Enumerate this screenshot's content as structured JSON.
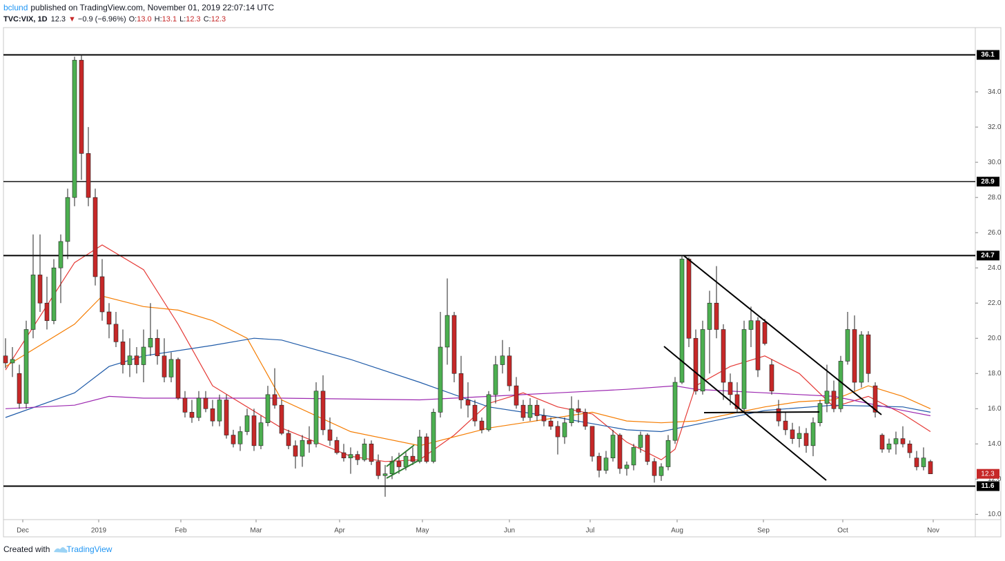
{
  "chart_data": {
    "type": "candlestick",
    "author": "bclund",
    "published": "published on TradingView.com, November 01, 2019 22:07:14 UTC",
    "symbol": "TVC:VIX, 1D",
    "last": "12.3",
    "arrow": "▼",
    "change": "−0.9 (−6.96%)",
    "ohlc_legend": [
      {
        "label": "O:",
        "value": "13.0"
      },
      {
        "label": "H:",
        "value": "13.1"
      },
      {
        "label": "L:",
        "value": "12.3"
      },
      {
        "label": "C:",
        "value": "12.3"
      }
    ],
    "footer": {
      "text": "Created with",
      "brand": "TradingView"
    },
    "up_color": "#4caf50",
    "down_color": "#c62828",
    "grid": false,
    "xlim": [
      -0.3,
      140.5
    ],
    "ylim": [
      9.7,
      37.65
    ],
    "xticks": [
      {
        "value": 2.5,
        "label": "Dec"
      },
      {
        "value": 13.5,
        "label": "2019"
      },
      {
        "value": 25.4,
        "label": "Feb"
      },
      {
        "value": 36.3,
        "label": "Mar"
      },
      {
        "value": 48.4,
        "label": "Apr"
      },
      {
        "value": 60.4,
        "label": "May"
      },
      {
        "value": 73,
        "label": "Jun"
      },
      {
        "value": 84.7,
        "label": "Jul"
      },
      {
        "value": 97.3,
        "label": "Aug"
      },
      {
        "value": 109.8,
        "label": "Sep"
      },
      {
        "value": 121.3,
        "label": "Oct"
      },
      {
        "value": 134.4,
        "label": "Nov"
      }
    ],
    "yticks": [
      {
        "value": 10,
        "label": "10.0"
      },
      {
        "value": 12,
        "label": "12.0"
      },
      {
        "value": 14,
        "label": "14.0"
      },
      {
        "value": 16,
        "label": "16.0"
      },
      {
        "value": 18,
        "label": "18.0"
      },
      {
        "value": 20,
        "label": "20.0"
      },
      {
        "value": 22,
        "label": "22.0"
      },
      {
        "value": 24,
        "label": "24.0"
      },
      {
        "value": 26,
        "label": "26.0"
      },
      {
        "value": 28,
        "label": "28.0"
      },
      {
        "value": 30,
        "label": "30.0"
      },
      {
        "value": 32,
        "label": "32.0"
      },
      {
        "value": 34,
        "label": "34.0"
      }
    ],
    "levels": [
      36.1,
      28.9,
      24.7,
      11.6
    ],
    "open": [
      19.0,
      18.6,
      18.0,
      16.3,
      20.5,
      23.6,
      22.0,
      21.0,
      24.0,
      25.5,
      28.0,
      35.8,
      30.5,
      28.0,
      23.5,
      21.5,
      20.8,
      19.8,
      18.5,
      19.0,
      18.5,
      19.5,
      20.0,
      19.0,
      17.8,
      18.8,
      16.6,
      15.8,
      15.5,
      16.6,
      16.0,
      15.3,
      16.5,
      14.5,
      14.0,
      14.7,
      15.6,
      13.9,
      15.2,
      16.8,
      16.2,
      14.6,
      13.9,
      13.3,
      14.2,
      14.0,
      17.0,
      14.8,
      14.2,
      13.5,
      13.2,
      13.4,
      13.1,
      14.0,
      13.0,
      12.2,
      12.3,
      13.0,
      12.7,
      13.3,
      13.0,
      14.4,
      13.0,
      15.8,
      19.5,
      21.3,
      18.0,
      16.5,
      16.2,
      15.3,
      14.8,
      16.8,
      18.5,
      19.0,
      17.3,
      16.2,
      15.5,
      16.2,
      15.6,
      15.3,
      15.0,
      14.4,
      15.2,
      16.0,
      15.8,
      15.0,
      13.3,
      12.5,
      13.2,
      14.5,
      12.6,
      12.8,
      13.8,
      14.5,
      13.0,
      12.2,
      12.7,
      14.2,
      17.5,
      24.5,
      20.0,
      17.0,
      20.5,
      22.0,
      20.5,
      17.5,
      16.8,
      16.0,
      20.5,
      21.0,
      20.9,
      18.5,
      16.0,
      15.3,
      14.8,
      14.3,
      14.6,
      13.9,
      15.2,
      16.3,
      17.0,
      16.0,
      18.7,
      20.5,
      17.5,
      20.2,
      17.3,
      14.5,
      13.7,
      14.0,
      14.3,
      14.0,
      13.2,
      12.7,
      13.0
    ],
    "high": [
      20.0,
      19.5,
      18.5,
      21.0,
      25.9,
      25.9,
      23.5,
      24.5,
      25.9,
      28.5,
      36.0,
      36.1,
      32.0,
      28.5,
      24.5,
      22.0,
      21.5,
      20.5,
      20.0,
      19.5,
      20.5,
      22.0,
      20.5,
      20.0,
      19.2,
      18.9,
      17.0,
      16.5,
      17.0,
      17.0,
      16.5,
      16.8,
      16.8,
      14.8,
      15.0,
      16.0,
      16.0,
      15.6,
      17.3,
      18.3,
      16.5,
      14.8,
      14.2,
      14.5,
      15.0,
      17.5,
      17.9,
      15.5,
      14.4,
      14.0,
      13.8,
      13.6,
      14.3,
      14.2,
      13.4,
      12.8,
      13.3,
      13.5,
      13.6,
      13.8,
      14.8,
      14.6,
      16.0,
      21.5,
      23.4,
      21.5,
      19.0,
      17.5,
      16.5,
      15.5,
      17.0,
      19.0,
      19.9,
      19.5,
      17.8,
      16.5,
      16.6,
      16.5,
      16.0,
      15.5,
      15.3,
      15.5,
      16.7,
      16.5,
      16.0,
      15.0,
      13.5,
      13.6,
      14.8,
      14.6,
      13.0,
      14.0,
      14.7,
      14.6,
      13.2,
      12.9,
      14.5,
      17.8,
      24.7,
      24.6,
      20.5,
      21.0,
      22.7,
      24.1,
      20.8,
      18.0,
      17.5,
      21.0,
      21.8,
      21.2,
      21.1,
      18.8,
      16.5,
      15.8,
      15.2,
      15.0,
      14.9,
      15.5,
      16.5,
      18.5,
      17.6,
      19.0,
      21.5,
      21.3,
      20.4,
      20.4,
      17.5,
      14.6,
      14.3,
      14.7,
      15.0,
      14.2,
      13.6,
      13.8,
      13.1
    ],
    "low": [
      18.3,
      17.8,
      16.0,
      16.0,
      20.0,
      21.5,
      20.5,
      20.8,
      22.0,
      24.5,
      27.5,
      29.0,
      27.5,
      23.0,
      21.0,
      20.0,
      19.5,
      18.0,
      17.8,
      18.0,
      17.5,
      19.0,
      18.5,
      17.5,
      17.5,
      16.5,
      15.5,
      15.2,
      15.3,
      15.8,
      15.0,
      15.0,
      14.3,
      13.8,
      13.6,
      14.5,
      13.6,
      13.7,
      15.0,
      16.0,
      14.5,
      13.7,
      12.6,
      12.7,
      13.5,
      13.8,
      14.5,
      13.9,
      13.4,
      13.0,
      12.3,
      12.8,
      13.0,
      12.8,
      12.0,
      11.0,
      12.0,
      12.3,
      12.5,
      12.8,
      12.9,
      12.9,
      12.9,
      15.5,
      18.5,
      17.5,
      16.0,
      15.5,
      15.0,
      14.6,
      14.7,
      16.3,
      18.0,
      17.0,
      16.0,
      15.3,
      15.3,
      15.3,
      15.0,
      14.8,
      13.4,
      14.0,
      15.0,
      15.2,
      14.8,
      13.0,
      12.1,
      12.3,
      13.0,
      12.3,
      12.2,
      12.5,
      13.5,
      12.8,
      11.8,
      11.9,
      12.5,
      14.0,
      17.4,
      19.5,
      16.8,
      16.8,
      18.0,
      20.0,
      16.5,
      16.2,
      15.8,
      15.8,
      19.5,
      17.8,
      19.6,
      16.8,
      15.0,
      14.5,
      14.0,
      13.8,
      13.5,
      13.3,
      15.0,
      15.8,
      15.8,
      15.8,
      18.5,
      17.0,
      17.2,
      17.5,
      15.5,
      13.5,
      13.5,
      13.4,
      13.8,
      13.2,
      12.5,
      12.5,
      12.3
    ],
    "close": [
      18.6,
      18.8,
      16.3,
      20.5,
      23.6,
      22.0,
      21.0,
      24.0,
      25.5,
      28.0,
      35.8,
      30.5,
      28.0,
      23.5,
      21.5,
      20.8,
      19.8,
      18.5,
      19.0,
      18.5,
      19.5,
      20.0,
      19.0,
      17.8,
      18.8,
      16.6,
      15.8,
      15.5,
      16.6,
      16.0,
      15.3,
      16.5,
      14.5,
      14.0,
      14.7,
      15.6,
      13.9,
      15.2,
      16.8,
      16.2,
      14.6,
      13.9,
      13.3,
      14.2,
      14.0,
      17.0,
      14.8,
      14.2,
      13.5,
      13.2,
      13.4,
      13.1,
      14.0,
      13.0,
      12.2,
      12.3,
      13.0,
      12.7,
      13.3,
      13.0,
      14.4,
      13.0,
      15.8,
      19.5,
      21.3,
      18.0,
      16.5,
      16.2,
      15.3,
      14.8,
      16.8,
      18.5,
      19.0,
      17.3,
      16.2,
      15.5,
      16.2,
      15.6,
      15.3,
      15.0,
      14.4,
      15.2,
      16.0,
      15.8,
      15.0,
      13.3,
      12.5,
      13.2,
      14.5,
      12.6,
      12.8,
      13.8,
      14.5,
      13.0,
      12.2,
      12.7,
      14.2,
      17.5,
      24.5,
      20.0,
      17.0,
      20.5,
      22.0,
      20.5,
      17.5,
      16.8,
      16.0,
      20.5,
      21.0,
      18.2,
      19.7,
      17.0,
      15.3,
      14.8,
      14.3,
      14.6,
      13.9,
      15.2,
      16.3,
      17.0,
      16.0,
      18.7,
      20.5,
      17.5,
      20.2,
      18.0,
      15.8,
      13.7,
      14.0,
      14.3,
      14.0,
      13.5,
      12.7,
      13.2,
      12.3
    ],
    "overlays": [
      {
        "color": "#e53935",
        "x": [
          0,
          10,
          14,
          20,
          25,
          30,
          40,
          50,
          55,
          60,
          65,
          70,
          75,
          80,
          85,
          90,
          95,
          97,
          100,
          105,
          110,
          115,
          120,
          125,
          130,
          134
        ],
        "values": [
          18.2,
          24.3,
          25.3,
          23.9,
          20.8,
          17.3,
          14.9,
          13.3,
          13.0,
          13.1,
          14.5,
          16.3,
          16.9,
          16.1,
          15.7,
          14.1,
          13.1,
          13.7,
          17.3,
          18.4,
          19.0,
          18.0,
          16.1,
          16.7,
          15.7,
          14.7
        ]
      },
      {
        "color": "#f57c00",
        "x": [
          0,
          10,
          14,
          20,
          25,
          30,
          35,
          40,
          50,
          60,
          70,
          75,
          80,
          85,
          90,
          95,
          100,
          105,
          110,
          115,
          120,
          125,
          130,
          134
        ],
        "values": [
          18.4,
          20.8,
          22.4,
          21.8,
          21.6,
          21.0,
          20.0,
          16.5,
          14.7,
          13.9,
          14.9,
          15.2,
          15.5,
          15.8,
          15.3,
          15.2,
          15.3,
          15.7,
          16.1,
          16.4,
          16.5,
          17.3,
          16.7,
          16.0
        ]
      },
      {
        "color": "#1e5aa8",
        "x": [
          0,
          10,
          15,
          20,
          30,
          36,
          40,
          50,
          60,
          70,
          80,
          90,
          95,
          100,
          110,
          120,
          130,
          134
        ],
        "values": [
          15.5,
          16.9,
          18.4,
          19.0,
          19.6,
          20.0,
          19.9,
          18.8,
          17.5,
          16.1,
          15.5,
          14.8,
          14.7,
          15.1,
          15.9,
          16.2,
          16.1,
          15.8
        ]
      },
      {
        "color": "#9c27b0",
        "x": [
          0,
          10,
          15,
          20,
          40,
          60,
          80,
          90,
          97,
          100,
          110,
          120,
          130,
          134
        ],
        "values": [
          16.0,
          16.2,
          16.7,
          16.6,
          16.6,
          16.5,
          16.9,
          17.1,
          17.3,
          17.1,
          16.9,
          16.7,
          15.9,
          15.6
        ]
      }
    ]
  }
}
